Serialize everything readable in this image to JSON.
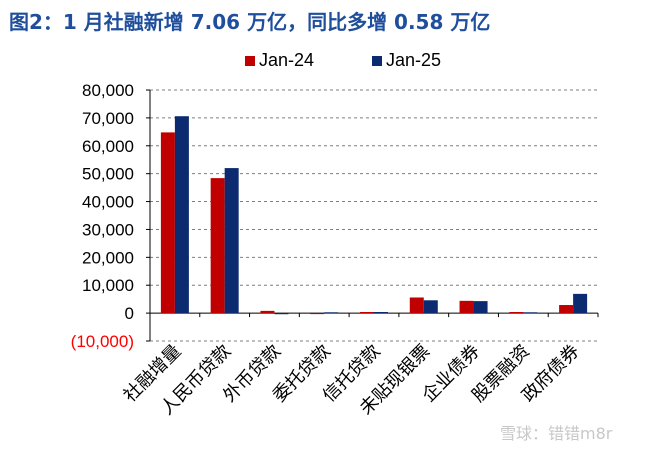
{
  "title": "图2：1 月社融新增 7.06 万亿，同比多增 0.58 万亿",
  "watermark": "雪球：错错m8r",
  "chart_data": {
    "type": "bar",
    "categories": [
      "社融增量",
      "人民币贷款",
      "外币贷款",
      "委托贷款",
      "信托贷款",
      "未贴现银票",
      "企业债券",
      "股票融资",
      "政府债券"
    ],
    "series": [
      {
        "name": "Jan-24",
        "color": "#c00000",
        "values": [
          64800,
          48400,
          800,
          -200,
          400,
          5600,
          4400,
          400,
          2900
        ]
      },
      {
        "name": "Jan-25",
        "color": "#0b2a6f",
        "values": [
          70600,
          52000,
          -400,
          300,
          400,
          4600,
          4300,
          300,
          6900
        ]
      }
    ],
    "ylim": [
      -10000,
      80000
    ],
    "yticks": [
      {
        "value": 80000,
        "label": "80,000"
      },
      {
        "value": 70000,
        "label": "70,000"
      },
      {
        "value": 60000,
        "label": "60,000"
      },
      {
        "value": 50000,
        "label": "50,000"
      },
      {
        "value": 40000,
        "label": "40,000"
      },
      {
        "value": 30000,
        "label": "30,000"
      },
      {
        "value": 20000,
        "label": "20,000"
      },
      {
        "value": 10000,
        "label": "10,000"
      },
      {
        "value": 0,
        "label": "0"
      },
      {
        "value": -10000,
        "label": "(10,000)"
      }
    ],
    "negative_tick_color": "#ff0000",
    "grid": true,
    "gridline_style": "dashed",
    "legend_position": "top"
  }
}
